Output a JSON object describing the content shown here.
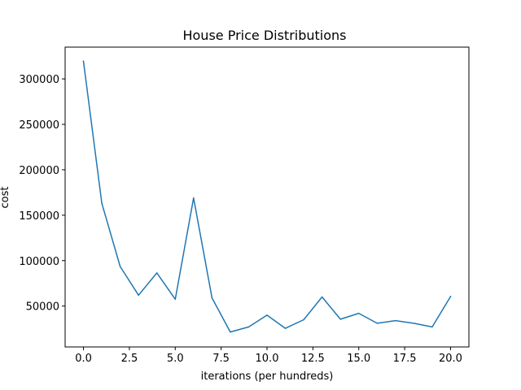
{
  "chart_data": {
    "type": "line",
    "title": "House Price Distributions",
    "xlabel": "iterations (per hundreds)",
    "ylabel": "cost",
    "xlim": [
      -1.0,
      21.0
    ],
    "ylim": [
      5000,
      335000
    ],
    "xticks": [
      0,
      2.5,
      5,
      7.5,
      10,
      12.5,
      15,
      17.5,
      20
    ],
    "xtick_labels": [
      "0.0",
      "2.5",
      "5.0",
      "7.5",
      "10.0",
      "12.5",
      "15.0",
      "17.5",
      "20.0"
    ],
    "yticks": [
      50000,
      100000,
      150000,
      200000,
      250000,
      300000
    ],
    "ytick_labels": [
      "50000",
      "100000",
      "150000",
      "200000",
      "250000",
      "300000"
    ],
    "grid": false,
    "legend": "none",
    "series": [
      {
        "name": "cost",
        "color": "#1f77b4",
        "x": [
          0,
          1,
          2,
          3,
          4,
          5,
          6,
          7,
          8,
          9,
          10,
          11,
          12,
          13,
          14,
          15,
          16,
          17,
          18,
          19,
          20
        ],
        "y": [
          319500,
          163000,
          93500,
          62000,
          86500,
          57500,
          169000,
          59000,
          21500,
          27000,
          40000,
          25500,
          35000,
          60000,
          35500,
          42000,
          31000,
          34000,
          31000,
          27000,
          60500
        ]
      }
    ]
  }
}
